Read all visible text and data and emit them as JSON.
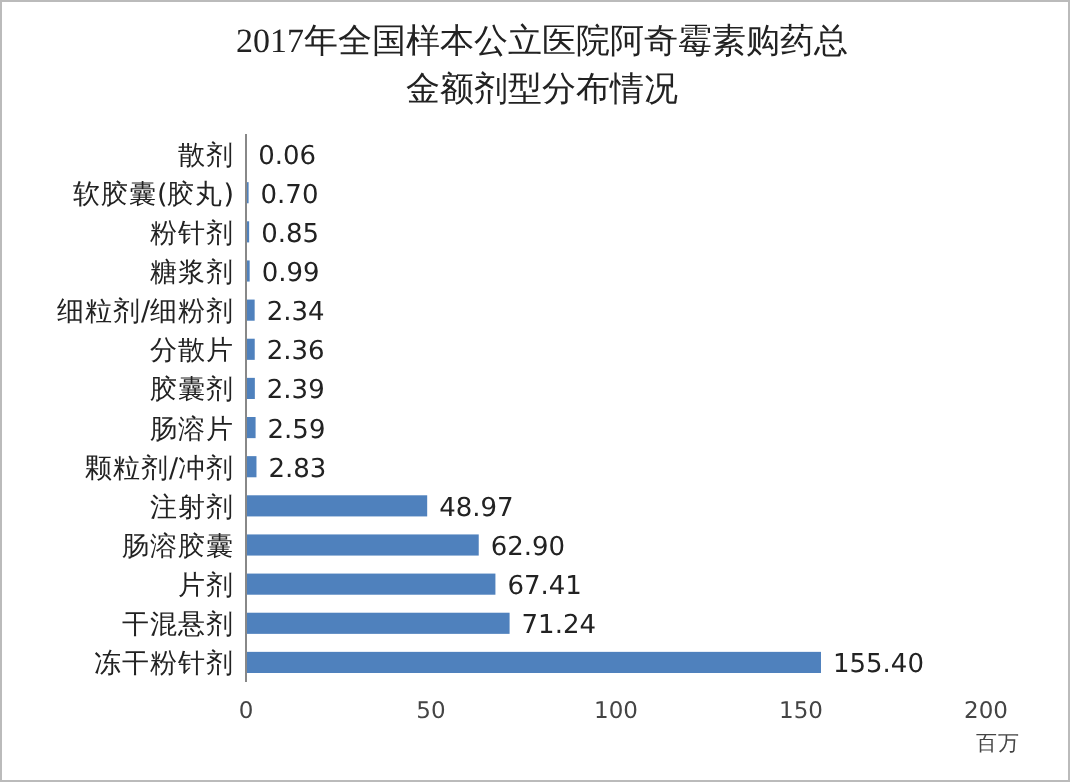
{
  "chart_data": {
    "type": "bar",
    "orientation": "horizontal",
    "title": "2017年全国样本公立医院阿奇霉素购药总金额剂型分布情况",
    "categories": [
      "散剂",
      "软胶囊(胶丸)",
      "粉针剂",
      "糖浆剂",
      "细粒剂/细粉剂",
      "分散片",
      "胶囊剂",
      "肠溶片",
      "颗粒剂/冲剂",
      "注射剂",
      "肠溶胶囊",
      "片剂",
      "干混悬剂",
      "冻干粉针剂"
    ],
    "values": [
      0.06,
      0.7,
      0.85,
      0.99,
      2.34,
      2.36,
      2.39,
      2.59,
      2.83,
      48.97,
      62.9,
      67.41,
      71.24,
      155.4
    ],
    "value_labels": [
      "0.06",
      "0.70",
      "0.85",
      "0.99",
      "2.34",
      "2.36",
      "2.39",
      "2.59",
      "2.83",
      "48.97",
      "62.90",
      "67.41",
      "71.24",
      "155.40"
    ],
    "color": "#4f81bd",
    "xlabel": "百万",
    "xlim": [
      0,
      200
    ],
    "xticks": [
      0,
      50,
      100,
      150,
      200
    ],
    "grid": false
  }
}
